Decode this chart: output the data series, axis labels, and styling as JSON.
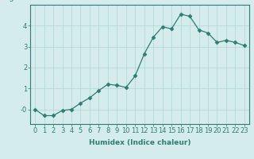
{
  "title": "",
  "xlabel": "Humidex (Indice chaleur)",
  "ylabel": "",
  "x": [
    0,
    1,
    2,
    3,
    4,
    5,
    6,
    7,
    8,
    9,
    10,
    11,
    12,
    13,
    14,
    15,
    16,
    17,
    18,
    19,
    20,
    21,
    22,
    23
  ],
  "y": [
    0.0,
    -0.3,
    -0.3,
    -0.05,
    -0.0,
    0.3,
    0.55,
    0.9,
    1.2,
    1.15,
    1.05,
    1.6,
    2.65,
    3.45,
    3.95,
    3.85,
    4.55,
    4.45,
    3.8,
    3.65,
    3.2,
    3.3,
    3.2,
    3.05
  ],
  "line_color": "#2e7d72",
  "marker": "D",
  "marker_size": 2.5,
  "bg_color": "#d4ecec",
  "grid_color": "#aed4d4",
  "ylim": [
    -0.7,
    5.0
  ],
  "xlim": [
    -0.5,
    23.5
  ],
  "yticks": [
    0,
    1,
    2,
    3,
    4
  ],
  "ytick_labels": [
    "-0",
    "1",
    "2",
    "3",
    "4"
  ],
  "label_fontsize": 6.5,
  "tick_fontsize": 6.0
}
